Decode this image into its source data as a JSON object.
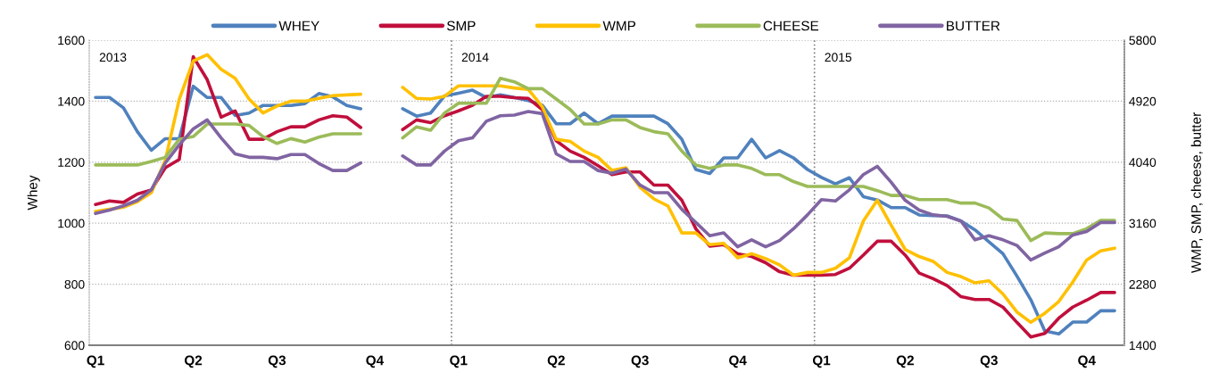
{
  "chart_data": {
    "type": "line",
    "ylabel": "Whey",
    "y2label": "WMP, SMP, cheese, butter",
    "categories": [
      "Q1",
      null,
      null,
      null,
      null,
      null,
      null,
      "Q2",
      null,
      null,
      null,
      null,
      null,
      "Q3",
      null,
      null,
      null,
      null,
      null,
      null,
      "Q4",
      null,
      null,
      null,
      null,
      null,
      "Q1",
      null,
      null,
      null,
      null,
      null,
      null,
      "Q2",
      null,
      null,
      null,
      null,
      null,
      "Q3",
      null,
      null,
      null,
      null,
      null,
      null,
      "Q4",
      null,
      null,
      null,
      null,
      null,
      "Q1",
      null,
      null,
      null,
      null,
      null,
      "Q2",
      null,
      null,
      null,
      null,
      null,
      "Q3",
      null,
      null,
      null,
      null,
      null,
      null,
      "Q4",
      null,
      null
    ],
    "ylim": [
      600,
      1600
    ],
    "yticks": [
      600,
      800,
      1000,
      1200,
      1400,
      1600
    ],
    "y2lim": [
      1400,
      5800
    ],
    "y2ticks": [
      1400,
      2280,
      3160,
      4040,
      4920,
      5800
    ],
    "grid": "y",
    "legend": "top",
    "line_style": "solid",
    "annotations": [
      "2013",
      "2014",
      "2015"
    ],
    "series": [
      {
        "name": "WHEY",
        "color": "#4f81bd",
        "values": [
          1412,
          1412,
          1378,
          1300,
          1239,
          1277,
          1277,
          1449,
          1412,
          1412,
          1353,
          1361,
          1386,
          1386,
          1386,
          1392,
          1425,
          1414,
          1386,
          1375,
          null,
          null,
          1375,
          1351,
          1361,
          1417,
          1426,
          1436,
          1412,
          1421,
          1412,
          1402,
          1387,
          1326,
          1326,
          1361,
          1326,
          1351,
          1351,
          1351,
          1351,
          1326,
          1275,
          1176,
          1163,
          1214,
          1214,
          1275,
          1214,
          1238,
          1214,
          1176,
          1150,
          1129,
          1149,
          1087,
          1076,
          1051,
          1051,
          1027,
          1025,
          1024,
          1007,
          978,
          939,
          900,
          827,
          749,
          647,
          637,
          676,
          676,
          713,
          713
        ]
      },
      {
        "name": "SMP",
        "color": "#c00f3c",
        "axis": "y2",
        "values": [
          3430,
          3480,
          3460,
          3580,
          3640,
          3960,
          4080,
          5560,
          5230,
          4690,
          4780,
          4370,
          4370,
          4480,
          4550,
          4550,
          4650,
          4710,
          4690,
          4540,
          null,
          null,
          4510,
          4650,
          4610,
          4710,
          4780,
          4860,
          4990,
          4990,
          4970,
          4960,
          4800,
          4350,
          4200,
          4110,
          3990,
          3860,
          3900,
          3900,
          3710,
          3710,
          3490,
          3080,
          2830,
          2850,
          2720,
          2680,
          2590,
          2460,
          2410,
          2410,
          2410,
          2420,
          2510,
          2700,
          2900,
          2900,
          2700,
          2440,
          2360,
          2260,
          2100,
          2060,
          2060,
          1950,
          1730,
          1520,
          1570,
          1790,
          1950,
          2050,
          2160,
          2160
        ]
      },
      {
        "name": "WMP",
        "color": "#ffc000",
        "axis": "y2",
        "values": [
          3330,
          3360,
          3390,
          3470,
          3600,
          4070,
          4950,
          5500,
          5590,
          5380,
          5250,
          4950,
          4750,
          4850,
          4920,
          4920,
          4960,
          5000,
          5010,
          5020,
          null,
          null,
          5120,
          4960,
          4950,
          4990,
          5140,
          5140,
          5140,
          5140,
          5110,
          5090,
          4840,
          4370,
          4340,
          4200,
          4110,
          3920,
          3960,
          3680,
          3510,
          3410,
          3020,
          3020,
          2850,
          2870,
          2660,
          2720,
          2650,
          2560,
          2410,
          2450,
          2450,
          2510,
          2660,
          3190,
          3490,
          3130,
          2780,
          2680,
          2610,
          2450,
          2390,
          2300,
          2330,
          2140,
          1880,
          1730,
          1860,
          2030,
          2310,
          2630,
          2760,
          2800
        ]
      },
      {
        "name": "CHEESE",
        "color": "#9bbb59",
        "axis": "y2",
        "values": [
          4000,
          4000,
          4000,
          4000,
          4050,
          4110,
          4370,
          4410,
          4590,
          4590,
          4590,
          4570,
          4410,
          4310,
          4380,
          4330,
          4400,
          4450,
          4450,
          4450,
          null,
          null,
          4390,
          4550,
          4500,
          4750,
          4890,
          4890,
          4890,
          5250,
          5200,
          5100,
          5100,
          4950,
          4800,
          4590,
          4590,
          4650,
          4650,
          4540,
          4480,
          4450,
          4200,
          4000,
          3950,
          4000,
          4000,
          3950,
          3860,
          3860,
          3760,
          3690,
          3690,
          3690,
          3690,
          3690,
          3630,
          3560,
          3560,
          3500,
          3500,
          3500,
          3450,
          3450,
          3380,
          3220,
          3200,
          2910,
          3020,
          3010,
          3010,
          3080,
          3200,
          3200
        ]
      },
      {
        "name": "BUTTER",
        "color": "#8064a2",
        "axis": "y2",
        "values": [
          3300,
          3350,
          3410,
          3490,
          3640,
          4030,
          4290,
          4520,
          4650,
          4390,
          4160,
          4110,
          4110,
          4090,
          4150,
          4150,
          4020,
          3920,
          3920,
          4030,
          null,
          null,
          4130,
          4000,
          4000,
          4200,
          4350,
          4390,
          4630,
          4710,
          4720,
          4770,
          4740,
          4160,
          4050,
          4050,
          3920,
          3880,
          3940,
          3710,
          3600,
          3600,
          3360,
          3170,
          2980,
          3020,
          2820,
          2920,
          2820,
          2910,
          3080,
          3280,
          3500,
          3480,
          3640,
          3860,
          3980,
          3750,
          3490,
          3350,
          3280,
          3260,
          3190,
          2920,
          2980,
          2920,
          2840,
          2630,
          2730,
          2820,
          2990,
          3040,
          3170,
          3170
        ]
      }
    ]
  }
}
